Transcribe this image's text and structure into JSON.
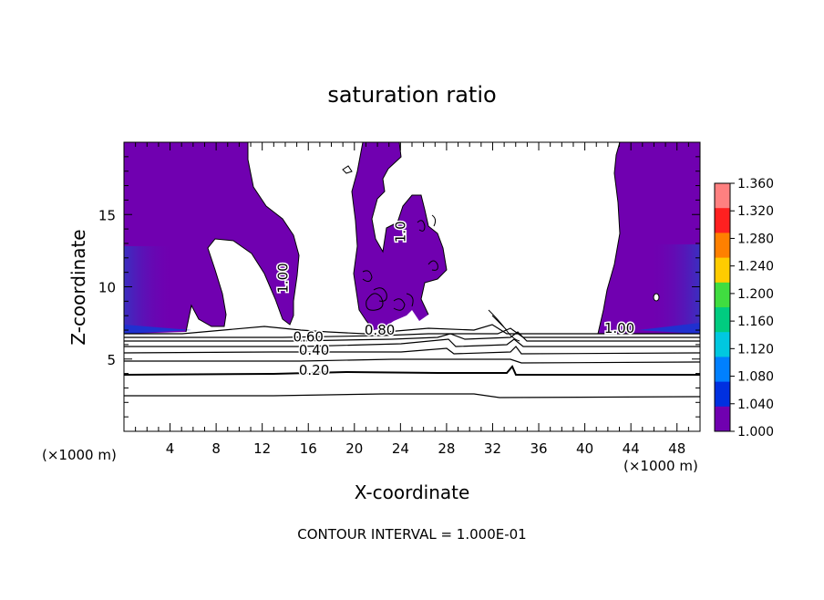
{
  "chart_data": {
    "type": "contour",
    "title": "saturation ratio",
    "xlabel": "X-coordinate",
    "ylabel": "Z-coordinate",
    "x_unit_left": "(×1000 m)",
    "x_unit_right": "(×1000 m)",
    "xlim": [
      0,
      50
    ],
    "ylim": [
      0,
      20
    ],
    "x_ticks": [
      4,
      8,
      12,
      16,
      20,
      24,
      28,
      32,
      36,
      40,
      44,
      48
    ],
    "y_ticks": [
      5,
      10,
      15
    ],
    "contour_interval_text": "CONTOUR INTERVAL = 1.000E-01",
    "contour_labels": [
      {
        "text": "0.20",
        "x": 16.5,
        "y": 3.9
      },
      {
        "text": "0.40",
        "x": 16.5,
        "y": 5.3
      },
      {
        "text": "0.60",
        "x": 16.0,
        "y": 6.2
      },
      {
        "text": "0.80",
        "x": 22.2,
        "y": 6.7
      },
      {
        "text": "1.00",
        "x": 14.2,
        "y": 10.6,
        "rotate": -90
      },
      {
        "text": "1.00",
        "x": 43.0,
        "y": 6.8
      },
      {
        "text": "1.0",
        "x": 24.4,
        "y": 13.8,
        "rotate": -90
      }
    ],
    "horizontal_contours": [
      2.6,
      4.0,
      4.9,
      5.6,
      6.1,
      6.4,
      6.6,
      6.9
    ],
    "colorbar": {
      "ticks": [
        "1.360",
        "1.320",
        "1.280",
        "1.240",
        "1.200",
        "1.160",
        "1.120",
        "1.080",
        "1.040",
        "1.000"
      ],
      "colors": [
        "#ff8080",
        "#ff2020",
        "#ff8000",
        "#ffcc00",
        "#40dd40",
        "#00cc80",
        "#00c8e0",
        "#0080ff",
        "#0030e0",
        "#7000b0"
      ]
    }
  }
}
